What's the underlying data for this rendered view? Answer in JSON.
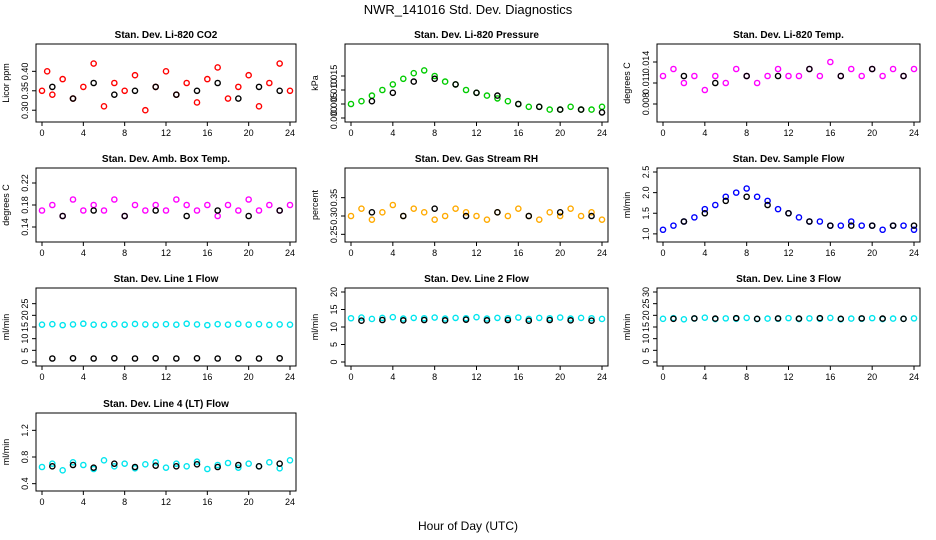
{
  "page": {
    "title": "NWR_141016  Std. Dev. Diagnostics",
    "xlabel": "Hour of Day (UTC)"
  },
  "chart_data": [
    {
      "type": "scatter",
      "title": "Stan. Dev. Li-820 CO2",
      "ylabel": "Licor ppm",
      "xlim": [
        0,
        24
      ],
      "ylim": [
        0.28,
        0.46
      ],
      "xticks": [
        0,
        4,
        8,
        12,
        16,
        20,
        24
      ],
      "yticks": [
        0.3,
        0.35,
        0.4
      ],
      "ytick_labels": [
        "0.30",
        "0.35",
        "0.40"
      ],
      "color": "#ff0000",
      "series": [
        {
          "x": [
            0,
            0.5,
            1,
            2,
            3,
            4,
            5,
            6,
            7,
            8,
            9,
            10,
            11,
            12,
            13,
            14,
            15,
            16,
            17,
            18,
            19,
            20,
            21,
            22,
            23,
            24
          ],
          "y": [
            0.35,
            0.4,
            0.34,
            0.38,
            0.33,
            0.36,
            0.42,
            0.31,
            0.37,
            0.35,
            0.39,
            0.3,
            0.36,
            0.4,
            0.34,
            0.37,
            0.32,
            0.38,
            0.41,
            0.33,
            0.36,
            0.39,
            0.31,
            0.37,
            0.42,
            0.35
          ]
        },
        {
          "x": [
            1,
            3,
            5,
            7,
            9,
            11,
            13,
            15,
            17,
            19,
            21,
            23
          ],
          "y": [
            0.36,
            0.33,
            0.37,
            0.34,
            0.35,
            0.36,
            0.34,
            0.35,
            0.37,
            0.33,
            0.36,
            0.35
          ]
        }
      ]
    },
    {
      "type": "scatter",
      "title": "Stan. Dev. Li-820 Pressure",
      "ylabel": "kPa",
      "xlim": [
        0,
        24
      ],
      "ylim": [
        0,
        0.025
      ],
      "xticks": [
        0,
        4,
        8,
        12,
        16,
        20,
        24
      ],
      "yticks": [
        0.0,
        0.005,
        0.01,
        0.015
      ],
      "ytick_labels": [
        "0.000",
        "0.005",
        "0.010",
        "0.015"
      ],
      "color": "#00cc00",
      "series": [
        {
          "x": [
            0,
            1,
            2,
            3,
            4,
            5,
            6,
            7,
            8,
            9,
            10,
            11,
            12,
            13,
            14,
            15,
            16,
            17,
            18,
            19,
            20,
            21,
            22,
            23,
            24
          ],
          "y": [
            0.005,
            0.006,
            0.008,
            0.01,
            0.012,
            0.014,
            0.016,
            0.017,
            0.015,
            0.013,
            0.012,
            0.01,
            0.009,
            0.008,
            0.007,
            0.006,
            0.005,
            0.004,
            0.004,
            0.003,
            0.003,
            0.004,
            0.003,
            0.003,
            0.004
          ]
        },
        {
          "x": [
            2,
            4,
            6,
            8,
            10,
            12,
            14,
            16,
            18,
            20,
            22,
            24
          ],
          "y": [
            0.006,
            0.009,
            0.013,
            0.014,
            0.012,
            0.009,
            0.008,
            0.005,
            0.004,
            0.003,
            0.003,
            0.002
          ]
        }
      ]
    },
    {
      "type": "scatter",
      "title": "Stan. Dev. Li-820 Temp.",
      "ylabel": "degrees C",
      "xlim": [
        0,
        24
      ],
      "ylim": [
        0.006,
        0.016
      ],
      "xticks": [
        0,
        4,
        8,
        12,
        16,
        20,
        24
      ],
      "yticks": [
        0.008,
        0.011,
        0.014
      ],
      "ytick_labels": [
        "0.008",
        "0.011",
        "0.014"
      ],
      "color": "#ff00ff",
      "series": [
        {
          "x": [
            0,
            1,
            2,
            3,
            4,
            5,
            6,
            7,
            8,
            9,
            10,
            11,
            12,
            13,
            14,
            15,
            16,
            17,
            18,
            19,
            20,
            21,
            22,
            23,
            24
          ],
          "y": [
            0.012,
            0.013,
            0.011,
            0.012,
            0.01,
            0.012,
            0.011,
            0.013,
            0.012,
            0.011,
            0.012,
            0.013,
            0.012,
            0.012,
            0.013,
            0.012,
            0.014,
            0.012,
            0.013,
            0.012,
            0.013,
            0.012,
            0.013,
            0.012,
            0.013
          ]
        },
        {
          "x": [
            2,
            5,
            8,
            11,
            14,
            17,
            20,
            23
          ],
          "y": [
            0.012,
            0.011,
            0.012,
            0.012,
            0.013,
            0.012,
            0.013,
            0.012
          ]
        }
      ]
    },
    {
      "type": "scatter",
      "title": "Stan. Dev. Amb. Box Temp.",
      "ylabel": "degrees C",
      "xlim": [
        0,
        24
      ],
      "ylim": [
        0.12,
        0.24
      ],
      "xticks": [
        0,
        4,
        8,
        12,
        16,
        20,
        24
      ],
      "yticks": [
        0.14,
        0.18,
        0.22
      ],
      "ytick_labels": [
        "0.14",
        "0.18",
        "0.22"
      ],
      "color": "#ff00ff",
      "series": [
        {
          "x": [
            0,
            1,
            2,
            3,
            4,
            5,
            6,
            7,
            8,
            9,
            10,
            11,
            12,
            13,
            14,
            15,
            16,
            17,
            18,
            19,
            20,
            21,
            22,
            23,
            24
          ],
          "y": [
            0.17,
            0.18,
            0.16,
            0.19,
            0.17,
            0.18,
            0.17,
            0.19,
            0.16,
            0.18,
            0.17,
            0.18,
            0.17,
            0.19,
            0.18,
            0.17,
            0.18,
            0.16,
            0.18,
            0.17,
            0.19,
            0.17,
            0.18,
            0.17,
            0.18
          ]
        },
        {
          "x": [
            2,
            5,
            8,
            11,
            14,
            17,
            20,
            23
          ],
          "y": [
            0.16,
            0.17,
            0.16,
            0.17,
            0.16,
            0.17,
            0.16,
            0.17
          ]
        }
      ]
    },
    {
      "type": "scatter",
      "title": "Stan. Dev. Gas Stream RH",
      "ylabel": "percent",
      "xlim": [
        0,
        24
      ],
      "ylim": [
        0.24,
        0.42
      ],
      "xticks": [
        0,
        4,
        8,
        12,
        16,
        20,
        24
      ],
      "yticks": [
        0.25,
        0.3,
        0.35
      ],
      "ytick_labels": [
        "0.25",
        "0.30",
        "0.35"
      ],
      "color": "#ffaa00",
      "series": [
        {
          "x": [
            0,
            1,
            2,
            3,
            4,
            5,
            6,
            7,
            8,
            9,
            10,
            11,
            12,
            13,
            14,
            15,
            16,
            17,
            18,
            19,
            20,
            21,
            22,
            23,
            24
          ],
          "y": [
            0.3,
            0.32,
            0.29,
            0.31,
            0.33,
            0.3,
            0.32,
            0.31,
            0.29,
            0.3,
            0.32,
            0.31,
            0.3,
            0.29,
            0.31,
            0.3,
            0.32,
            0.3,
            0.29,
            0.31,
            0.3,
            0.32,
            0.3,
            0.31,
            0.29
          ]
        },
        {
          "x": [
            2,
            5,
            8,
            11,
            14,
            17,
            20,
            23
          ],
          "y": [
            0.31,
            0.3,
            0.32,
            0.3,
            0.31,
            0.3,
            0.31,
            0.3
          ]
        }
      ]
    },
    {
      "type": "scatter",
      "title": "Stan. Dev. Sample Flow",
      "ylabel": "ml/min",
      "xlim": [
        0,
        24
      ],
      "ylim": [
        0.9,
        2.5
      ],
      "xticks": [
        0,
        4,
        8,
        12,
        16,
        20,
        24
      ],
      "yticks": [
        1.0,
        1.5,
        2.0,
        2.5
      ],
      "ytick_labels": [
        "1.0",
        "1.5",
        "2.0",
        "2.5"
      ],
      "color": "#0000ff",
      "series": [
        {
          "x": [
            0,
            1,
            2,
            3,
            4,
            5,
            6,
            7,
            8,
            9,
            10,
            11,
            12,
            13,
            14,
            15,
            16,
            17,
            18,
            19,
            20,
            21,
            22,
            23,
            24
          ],
          "y": [
            1.1,
            1.2,
            1.3,
            1.4,
            1.6,
            1.7,
            1.9,
            2.0,
            2.1,
            1.9,
            1.8,
            1.6,
            1.5,
            1.4,
            1.3,
            1.3,
            1.2,
            1.2,
            1.3,
            1.2,
            1.2,
            1.1,
            1.2,
            1.2,
            1.1
          ]
        },
        {
          "x": [
            2,
            4,
            6,
            8,
            10,
            12,
            14,
            16,
            18,
            20,
            22,
            24
          ],
          "y": [
            1.3,
            1.5,
            1.8,
            1.9,
            1.7,
            1.5,
            1.3,
            1.2,
            1.2,
            1.2,
            1.2,
            1.2
          ]
        }
      ]
    },
    {
      "type": "scatter",
      "title": "Stan. Dev. Line 1 Flow",
      "ylabel": "ml/min",
      "xlim": [
        0,
        24
      ],
      "ylim": [
        0,
        30
      ],
      "xticks": [
        0,
        4,
        8,
        12,
        16,
        20,
        24
      ],
      "yticks": [
        0,
        5,
        10,
        15,
        20,
        25
      ],
      "ytick_labels": [
        "0",
        "5",
        "10",
        "15",
        "20",
        "25"
      ],
      "color": "#00e5ee",
      "series": [
        {
          "x": [
            0,
            1,
            2,
            3,
            4,
            5,
            6,
            7,
            8,
            9,
            10,
            11,
            12,
            13,
            14,
            15,
            16,
            17,
            18,
            19,
            20,
            21,
            22,
            23,
            24
          ],
          "y": [
            16,
            16.2,
            15.8,
            16.1,
            16.4,
            16,
            15.9,
            16.2,
            16,
            16.3,
            16.1,
            15.9,
            16.2,
            16,
            16.4,
            16.1,
            15.8,
            16.2,
            16,
            16.3,
            16,
            16.2,
            15.9,
            16.1,
            16
          ]
        },
        {
          "x": [
            1,
            3,
            5,
            7,
            9,
            11,
            13,
            15,
            17,
            19,
            21,
            23
          ],
          "y": [
            1.5,
            1.6,
            1.5,
            1.6,
            1.5,
            1.6,
            1.5,
            1.6,
            1.5,
            1.6,
            1.5,
            1.6
          ]
        }
      ]
    },
    {
      "type": "scatter",
      "title": "Stan. Dev. Line 2 Flow",
      "ylabel": "ml/min",
      "xlim": [
        0,
        24
      ],
      "ylim": [
        0,
        20
      ],
      "xticks": [
        0,
        4,
        8,
        12,
        16,
        20,
        24
      ],
      "yticks": [
        0,
        5,
        10,
        15,
        20
      ],
      "ytick_labels": [
        "0",
        "5",
        "10",
        "15",
        "20"
      ],
      "color": "#00e5ee",
      "series": [
        {
          "x": [
            0,
            1,
            2,
            3,
            4,
            5,
            6,
            7,
            8,
            9,
            10,
            11,
            12,
            13,
            14,
            15,
            16,
            17,
            18,
            19,
            20,
            21,
            22,
            23,
            24
          ],
          "y": [
            12.5,
            12.7,
            12.3,
            12.6,
            12.8,
            12.4,
            12.6,
            12.5,
            12.7,
            12.4,
            12.6,
            12.5,
            12.8,
            12.4,
            12.6,
            12.5,
            12.7,
            12.3,
            12.6,
            12.5,
            12.7,
            12.4,
            12.6,
            12.5,
            12.3
          ]
        },
        {
          "x": [
            1,
            3,
            5,
            7,
            9,
            11,
            13,
            15,
            17,
            19,
            21,
            23
          ],
          "y": [
            11.8,
            12.0,
            11.9,
            12.0,
            11.9,
            12.1,
            11.9,
            12.0,
            11.8,
            12.0,
            11.9,
            11.8
          ]
        }
      ]
    },
    {
      "type": "scatter",
      "title": "Stan. Dev. Line 3 Flow",
      "ylabel": "ml/min",
      "xlim": [
        0,
        24
      ],
      "ylim": [
        0,
        30
      ],
      "xticks": [
        0,
        4,
        8,
        12,
        16,
        20,
        24
      ],
      "yticks": [
        0,
        5,
        10,
        15,
        20,
        25,
        30
      ],
      "ytick_labels": [
        "0",
        "5",
        "10",
        "15",
        "20",
        "25",
        "30"
      ],
      "color": "#00e5ee",
      "series": [
        {
          "x": [
            0,
            1,
            2,
            3,
            4,
            5,
            6,
            7,
            8,
            9,
            10,
            11,
            12,
            13,
            14,
            15,
            16,
            17,
            18,
            19,
            20,
            21,
            22,
            23,
            24
          ],
          "y": [
            18.5,
            18.8,
            18.3,
            18.6,
            19,
            18.4,
            18.7,
            18.5,
            18.9,
            18.4,
            18.6,
            18.5,
            18.8,
            18.4,
            18.7,
            18.5,
            18.9,
            18.3,
            18.6,
            18.5,
            18.8,
            18.4,
            18.6,
            18.5,
            18.7
          ]
        },
        {
          "x": [
            1,
            3,
            5,
            7,
            9,
            11,
            13,
            15,
            17,
            19,
            21,
            23
          ],
          "y": [
            18.5,
            18.7,
            18.6,
            18.8,
            18.5,
            18.7,
            18.6,
            18.8,
            18.5,
            18.7,
            18.6,
            18.5
          ]
        }
      ]
    },
    {
      "type": "scatter",
      "title": "Stan. Dev. Line 4 (LT) Flow",
      "ylabel": "ml/min",
      "xlim": [
        0,
        24
      ],
      "ylim": [
        0.35,
        1.4
      ],
      "xticks": [
        0,
        4,
        8,
        12,
        16,
        20,
        24
      ],
      "yticks": [
        0.4,
        0.8,
        1.2
      ],
      "ytick_labels": [
        "0.4",
        "0.8",
        "1.2"
      ],
      "color": "#00e5ee",
      "series": [
        {
          "x": [
            0,
            1,
            2,
            3,
            4,
            5,
            6,
            7,
            8,
            9,
            10,
            11,
            12,
            13,
            14,
            15,
            16,
            17,
            18,
            19,
            20,
            21,
            22,
            23,
            24
          ],
          "y": [
            0.65,
            0.7,
            0.6,
            0.72,
            0.68,
            0.62,
            0.75,
            0.66,
            0.7,
            0.63,
            0.69,
            0.72,
            0.64,
            0.7,
            0.66,
            0.73,
            0.62,
            0.68,
            0.71,
            0.64,
            0.7,
            0.66,
            0.72,
            0.63,
            0.75
          ]
        },
        {
          "x": [
            1,
            3,
            5,
            7,
            9,
            11,
            13,
            15,
            17,
            19,
            21,
            23
          ],
          "y": [
            0.66,
            0.68,
            0.64,
            0.7,
            0.65,
            0.67,
            0.66,
            0.69,
            0.65,
            0.68,
            0.66,
            0.7
          ]
        }
      ]
    }
  ]
}
